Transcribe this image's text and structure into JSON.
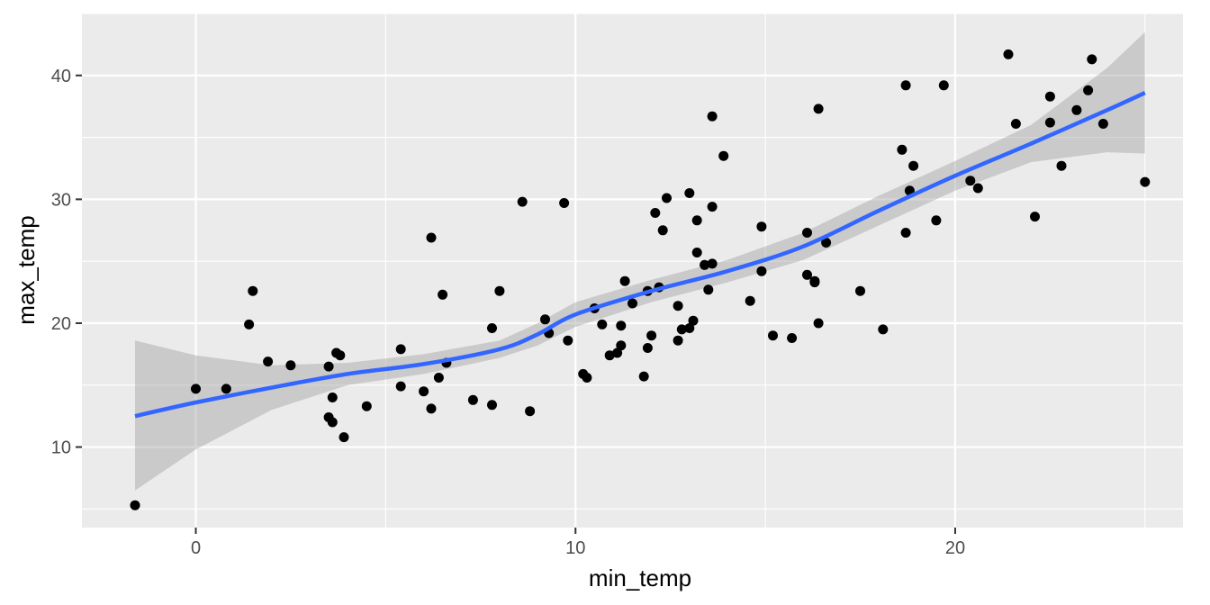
{
  "chart_data": {
    "type": "scatter",
    "title": "",
    "xlabel": "min_temp",
    "ylabel": "max_temp",
    "xlim": [
      -3.0,
      26.0
    ],
    "ylim": [
      3.5,
      45.0
    ],
    "x_ticks": [
      0,
      10,
      20
    ],
    "y_ticks": [
      10,
      20,
      30,
      40
    ],
    "grid": true,
    "legend": "none",
    "point_color": "#000000",
    "smooth_color": "#3366FF",
    "ribbon_color": "#999999",
    "panel_background": "#EBEBEB",
    "points": [
      [
        -1.6,
        5.3
      ],
      [
        0.0,
        14.7
      ],
      [
        0.8,
        14.7
      ],
      [
        1.4,
        19.9
      ],
      [
        1.5,
        22.6
      ],
      [
        1.9,
        16.9
      ],
      [
        2.5,
        16.6
      ],
      [
        3.5,
        16.5
      ],
      [
        3.5,
        12.4
      ],
      [
        3.6,
        14.0
      ],
      [
        3.6,
        12.0
      ],
      [
        3.7,
        17.6
      ],
      [
        3.8,
        17.4
      ],
      [
        3.9,
        10.8
      ],
      [
        4.5,
        13.3
      ],
      [
        5.4,
        17.9
      ],
      [
        5.4,
        14.9
      ],
      [
        6.0,
        14.5
      ],
      [
        6.2,
        26.9
      ],
      [
        6.2,
        13.1
      ],
      [
        6.4,
        15.6
      ],
      [
        6.5,
        22.3
      ],
      [
        6.6,
        16.8
      ],
      [
        7.3,
        13.8
      ],
      [
        7.8,
        19.6
      ],
      [
        7.8,
        13.4
      ],
      [
        8.0,
        22.6
      ],
      [
        8.6,
        29.8
      ],
      [
        8.8,
        12.9
      ],
      [
        9.2,
        20.3
      ],
      [
        9.3,
        19.2
      ],
      [
        9.7,
        29.7
      ],
      [
        9.8,
        18.6
      ],
      [
        10.2,
        15.9
      ],
      [
        10.3,
        15.6
      ],
      [
        10.5,
        21.2
      ],
      [
        10.7,
        19.9
      ],
      [
        10.9,
        17.4
      ],
      [
        11.1,
        17.6
      ],
      [
        11.2,
        18.2
      ],
      [
        11.2,
        19.8
      ],
      [
        11.3,
        23.4
      ],
      [
        11.5,
        21.6
      ],
      [
        11.8,
        15.7
      ],
      [
        11.9,
        18.0
      ],
      [
        11.9,
        22.6
      ],
      [
        12.0,
        19.0
      ],
      [
        12.1,
        28.9
      ],
      [
        12.2,
        22.9
      ],
      [
        12.3,
        27.5
      ],
      [
        12.4,
        30.1
      ],
      [
        12.7,
        21.4
      ],
      [
        12.7,
        18.6
      ],
      [
        12.8,
        19.5
      ],
      [
        13.0,
        19.6
      ],
      [
        13.0,
        30.5
      ],
      [
        13.1,
        20.2
      ],
      [
        13.2,
        25.7
      ],
      [
        13.2,
        28.3
      ],
      [
        13.4,
        24.7
      ],
      [
        13.5,
        22.7
      ],
      [
        13.6,
        24.8
      ],
      [
        13.6,
        29.4
      ],
      [
        13.6,
        36.7
      ],
      [
        13.9,
        33.5
      ],
      [
        14.6,
        21.8
      ],
      [
        14.9,
        27.8
      ],
      [
        14.9,
        24.2
      ],
      [
        15.2,
        19.0
      ],
      [
        15.7,
        18.8
      ],
      [
        16.1,
        27.3
      ],
      [
        16.1,
        23.9
      ],
      [
        16.3,
        23.3
      ],
      [
        16.3,
        23.4
      ],
      [
        16.4,
        20.0
      ],
      [
        16.4,
        37.3
      ],
      [
        16.6,
        26.5
      ],
      [
        17.5,
        22.6
      ],
      [
        18.1,
        19.5
      ],
      [
        18.6,
        34.0
      ],
      [
        18.7,
        27.3
      ],
      [
        18.7,
        39.2
      ],
      [
        18.8,
        30.7
      ],
      [
        18.9,
        32.7
      ],
      [
        19.5,
        28.3
      ],
      [
        19.7,
        39.2
      ],
      [
        20.4,
        31.5
      ],
      [
        20.6,
        30.9
      ],
      [
        21.4,
        41.7
      ],
      [
        21.6,
        36.1
      ],
      [
        22.1,
        28.6
      ],
      [
        22.5,
        38.3
      ],
      [
        22.5,
        36.2
      ],
      [
        22.8,
        32.7
      ],
      [
        23.2,
        37.2
      ],
      [
        23.5,
        38.8
      ],
      [
        23.6,
        41.3
      ],
      [
        23.9,
        36.1
      ],
      [
        25.0,
        31.4
      ]
    ],
    "smooth": {
      "method": "loess",
      "x": [
        -1.6,
        0,
        2,
        4,
        6,
        8,
        9,
        10,
        12,
        14,
        16,
        18,
        20,
        22,
        24,
        25.0
      ],
      "y": [
        12.5,
        13.6,
        14.8,
        15.9,
        16.7,
        17.9,
        19.1,
        20.7,
        22.6,
        24.2,
        26.2,
        29.1,
        31.9,
        34.5,
        37.2,
        38.6
      ],
      "ymin": [
        6.5,
        9.8,
        13.0,
        15.0,
        15.9,
        17.2,
        18.2,
        19.7,
        21.7,
        23.3,
        25.1,
        27.9,
        30.7,
        33.0,
        33.8,
        33.7
      ],
      "ymax": [
        18.6,
        17.4,
        16.6,
        16.8,
        17.5,
        18.6,
        20.0,
        21.7,
        23.5,
        25.1,
        27.3,
        30.3,
        33.1,
        36.0,
        40.6,
        43.5
      ]
    }
  }
}
